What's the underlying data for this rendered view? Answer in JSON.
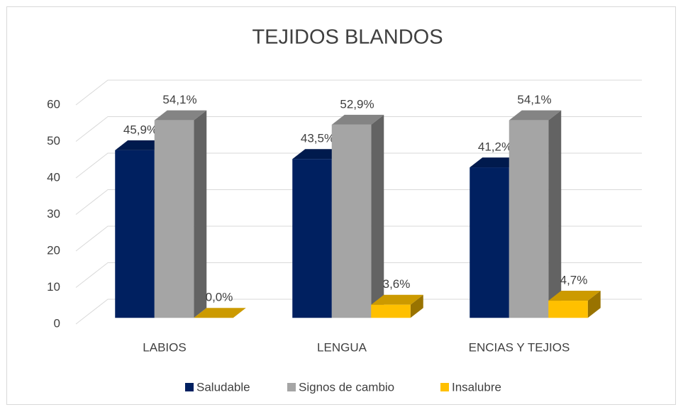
{
  "chart_data": {
    "type": "bar3d",
    "title": "TEJIDOS BLANDOS",
    "categories": [
      "LABIOS",
      "LENGUA",
      "ENCIAS Y TEJIOS"
    ],
    "series": [
      {
        "name": "Saludable",
        "color": "#002060",
        "values": [
          45.9,
          43.5,
          41.2
        ],
        "value_labels": [
          "45,9%",
          "43,5%",
          "41,2%"
        ]
      },
      {
        "name": "Signos de cambio",
        "color": "#a5a5a5",
        "values": [
          54.1,
          52.9,
          54.1
        ],
        "value_labels": [
          "54,1%",
          "52,9%",
          "54,1%"
        ]
      },
      {
        "name": "Insalubre",
        "color": "#ffc000",
        "values": [
          0.0,
          3.6,
          4.7
        ],
        "value_labels": [
          "0,0%",
          "3,6%",
          "4,7%"
        ]
      }
    ],
    "ylim": [
      0,
      60
    ],
    "yticks": [
      0,
      10,
      20,
      30,
      40,
      50,
      60
    ],
    "grid": true,
    "legend": "bottom"
  }
}
